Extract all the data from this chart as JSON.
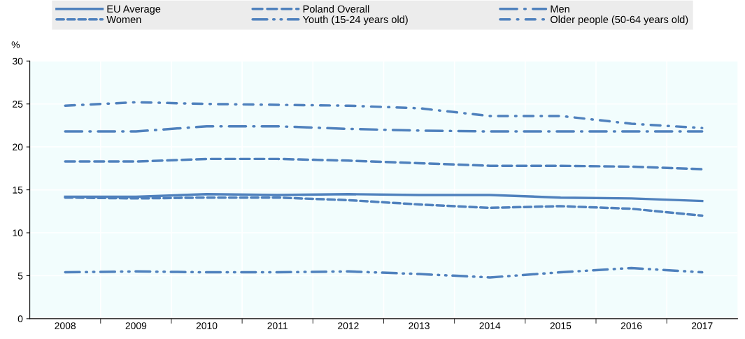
{
  "chart_data": {
    "type": "line",
    "ylabel": "%",
    "categories": [
      "2008",
      "2009",
      "2010",
      "2011",
      "2012",
      "2013",
      "2014",
      "2015",
      "2016",
      "2017"
    ],
    "ylim": [
      0,
      30
    ],
    "yticks": [
      0,
      5,
      10,
      15,
      20,
      25,
      30
    ],
    "grid": true,
    "legend": "top",
    "marker": "none",
    "series": [
      {
        "name": "EU Average",
        "color": "#4f81bd",
        "line_style": "solid",
        "values": [
          14.2,
          14.2,
          14.5,
          14.4,
          14.5,
          14.4,
          14.4,
          14.1,
          14.0,
          13.7
        ]
      },
      {
        "name": "Poland Overall",
        "color": "#4f81bd",
        "line_style": "dashed",
        "values": [
          18.3,
          18.3,
          18.6,
          18.6,
          18.4,
          18.1,
          17.8,
          17.8,
          17.7,
          17.4
        ]
      },
      {
        "name": "Men",
        "color": "#4f81bd",
        "line_style": "longdashdot",
        "values": [
          21.8,
          21.8,
          22.4,
          22.4,
          22.1,
          21.9,
          21.8,
          21.8,
          21.8,
          21.8
        ]
      },
      {
        "name": "Women",
        "color": "#4f81bd",
        "line_style": "shortdashed",
        "values": [
          14.1,
          14.0,
          14.1,
          14.1,
          13.8,
          13.3,
          12.9,
          13.1,
          12.8,
          12.0
        ]
      },
      {
        "name": "Youth (15-24 years old)",
        "color": "#4f81bd",
        "line_style": "dashdotdot",
        "values": [
          5.4,
          5.5,
          5.4,
          5.4,
          5.5,
          5.2,
          4.8,
          5.4,
          5.9,
          5.4
        ]
      },
      {
        "name": "Older people (50-64 years old)",
        "color": "#4f81bd",
        "line_style": "dashdot",
        "values": [
          24.8,
          25.2,
          25.0,
          24.9,
          24.8,
          24.5,
          23.6,
          23.6,
          22.7,
          22.2
        ]
      }
    ]
  }
}
